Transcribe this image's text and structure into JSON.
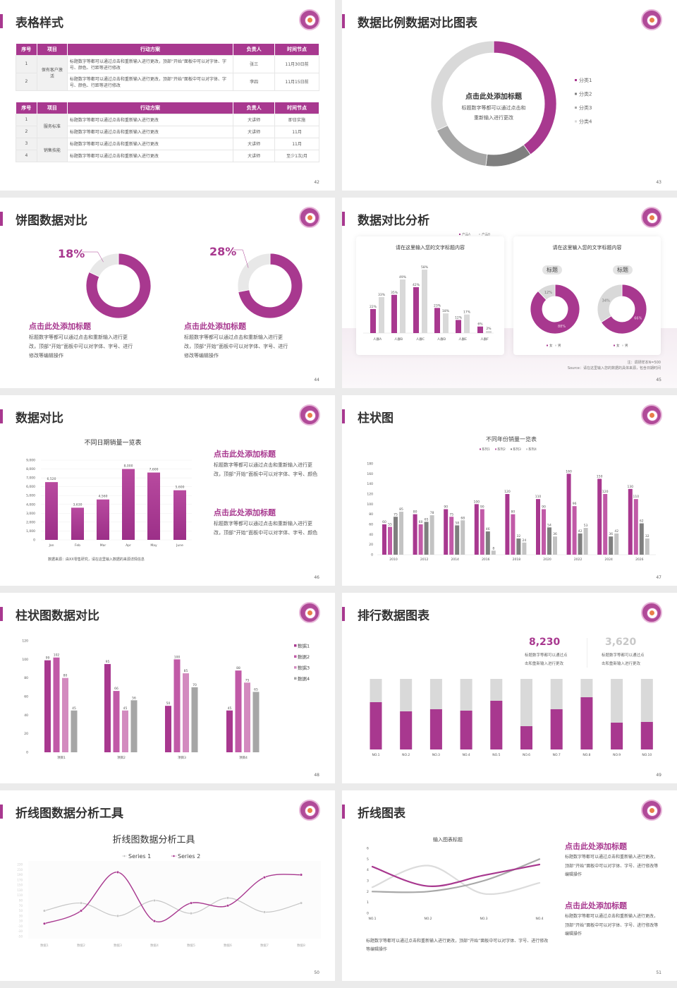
{
  "colors": {
    "accent": "#a8388f",
    "accent2": "#c15aa7",
    "accent3": "#d38bbf",
    "gray_dark": "#7f7f7f",
    "gray": "#a6a6a6",
    "gray_light": "#d9d9d9"
  },
  "s42": {
    "title": "表格样式",
    "page": "42",
    "table1": {
      "headers": [
        "序号",
        "项目",
        "行动方案",
        "负责人",
        "时间节点"
      ],
      "groups": [
        {
          "project": "保有客户激活",
          "rows": [
            {
              "no": "1",
              "plan": "标题数字等都可以通过点击和重新输入进行更改，顶部“开始”面板中可以对字体、字号、颜色、行距等进行修改",
              "owner": "张三",
              "time": "11月30日前"
            },
            {
              "no": "2",
              "plan": "标题数字等都可以通过点击和重新输入进行更改，顶部“开始”面板中可以对字体、字号、颜色、行距等进行修改",
              "owner": "李四",
              "time": "11月15日前"
            }
          ]
        }
      ]
    },
    "table2": {
      "headers": [
        "序号",
        "项目",
        "行动方案",
        "负责人",
        "时间节点"
      ],
      "groups": [
        {
          "project": "服务标准",
          "rows": [
            {
              "no": "1",
              "plan": "标题数字等都可以通过点击和重新输入进行更改",
              "owner": "大讲师",
              "time": "即日实施"
            },
            {
              "no": "2",
              "plan": "标题数字等都可以通过点击和重新输入进行更改",
              "owner": "大讲师",
              "time": "11月"
            }
          ]
        },
        {
          "project": "销售技能",
          "rows": [
            {
              "no": "3",
              "plan": "标题数字等都可以通过点击和重新输入进行更改",
              "owner": "大讲师",
              "time": "11月"
            },
            {
              "no": "4",
              "plan": "标题数字等都可以通过点击和重新输入进行更改",
              "owner": "大讲师",
              "time": "至少1次/月"
            }
          ]
        }
      ]
    }
  },
  "s43": {
    "title": "数据比例数据对比图表",
    "page": "43",
    "center_title": "点击此处添加标题",
    "center_line1": "标题数字等都可以通过点击和",
    "center_line2": "重新输入进行更改"
  },
  "s44": {
    "title": "饼图数据对比",
    "page": "44",
    "items": [
      {
        "percent": "18%",
        "heading": "点击此处添加标题",
        "body": "标题数字等都可以通过点击和重新输入进行更改，顶部“开始”面板中可以对字体、字号、进行修改等编辑操作"
      },
      {
        "percent": "28%",
        "heading": "点击此处添加标题",
        "body": "标题数字等都可以通过点击和重新输入进行更改，顶部“开始”面板中可以对字体、字号、进行修改等编辑操作"
      }
    ]
  },
  "s45": {
    "title": "数据对比分析",
    "page": "45",
    "card1_title": "请在这里输入您的文字标题内容",
    "card2_title": "请在这里输入您的文字标题内容",
    "pill1": "标题",
    "pill2": "标题",
    "note": "注：调研样本N=500",
    "source": "Source：请在这里输入您的数据的具体来源，包含日期时间"
  },
  "s46": {
    "title": "数据对比",
    "page": "46",
    "chart_title": "不同日期销量一览表",
    "source": "数据来源：由XX零售研究，请在这里输入数据的来源详情信息",
    "blocks": [
      {
        "heading": "点击此处添加标题",
        "body": "标题数字等都可以通过点击和重新输入进行更改，顶部“开始”面板中可以对字体、字号、颜色"
      },
      {
        "heading": "点击此处添加标题",
        "body": "标题数字等都可以通过点击和重新输入进行更改，顶部“开始”面板中可以对字体、字号、颜色"
      }
    ]
  },
  "s47": {
    "title": "柱状图",
    "page": "47",
    "chart_title": "不同年份销量一览表"
  },
  "s48": {
    "title": "柱状图数据对比",
    "page": "48"
  },
  "s49": {
    "title": "排行数据图表",
    "page": "49",
    "stat1": {
      "value": "8,230",
      "desc1": "标题数字等都可以通过点",
      "desc2": "击和重新输入进行更改"
    },
    "stat2": {
      "value": "3,620",
      "desc1": "标题数字等都可以通过点",
      "desc2": "击和重新输入进行更改"
    }
  },
  "s50": {
    "title": "折线图数据分析工具",
    "page": "50",
    "chart_title": "折线图数据分析工具"
  },
  "s51": {
    "title": "折线图表",
    "page": "51",
    "chart_title": "输入图表标题",
    "bottom_text": "标题数字等都可以通过点击和重新输入进行更改，顶部“开始”面板中可以对字体、字号、进行修改等编辑操作",
    "blocks": [
      {
        "heading": "点击此处添加标题",
        "body": "标题数字等都可以通过点击和重新输入进行更改，顶部“开始”面板中可以对字体、字号、进行修改等编辑操作"
      },
      {
        "heading": "点击此处添加标题",
        "body": "标题数字等都可以通过点击和重新输入进行更改，顶部“开始”面板中可以对字体、字号、进行修改等编辑操作"
      }
    ]
  },
  "chart_data": [
    {
      "id": "s43",
      "type": "pie",
      "donut": true,
      "categories": [
        "分类1",
        "分类2",
        "分类3",
        "分类4"
      ],
      "values": [
        40,
        12,
        16,
        32
      ],
      "legend": "right"
    },
    {
      "id": "s44a",
      "type": "pie",
      "donut": true,
      "values": [
        82,
        18
      ],
      "labels": [
        "",
        "18%"
      ]
    },
    {
      "id": "s44b",
      "type": "pie",
      "donut": true,
      "values": [
        72,
        28
      ],
      "labels": [
        "",
        "28%"
      ]
    },
    {
      "id": "s45bar",
      "type": "bar",
      "categories": [
        "人群A",
        "人群B",
        "人群C",
        "人群D",
        "人群E",
        "人群F"
      ],
      "series": [
        {
          "name": "产品A",
          "values": [
            22,
            35,
            42,
            23,
            12,
            6
          ]
        },
        {
          "name": "产品B",
          "values": [
            33,
            49,
            58,
            18,
            17,
            2
          ]
        }
      ],
      "unit": "%",
      "legend": "top-right"
    },
    {
      "id": "s45pie1",
      "type": "pie",
      "donut": true,
      "categories": [
        "女",
        "男"
      ],
      "values": [
        88,
        12
      ],
      "legend": "bottom"
    },
    {
      "id": "s45pie2",
      "type": "pie",
      "donut": true,
      "categories": [
        "女",
        "男"
      ],
      "values": [
        66,
        34
      ],
      "legend": "bottom"
    },
    {
      "id": "s46",
      "type": "bar",
      "title": "不同日期销量一览表",
      "categories": [
        "Jan",
        "Feb",
        "Mar",
        "Apr",
        "May",
        "June"
      ],
      "values": [
        6520,
        3630,
        4560,
        8000,
        7600,
        5600
      ],
      "ylim": [
        0,
        9000
      ],
      "yticks": [
        "0",
        "1,000",
        "2,000",
        "3,000",
        "4,000",
        "5,000",
        "6,000",
        "7,000",
        "8,000",
        "9,000"
      ],
      "value_labels": [
        "6,520",
        "3,630",
        "4,560",
        "8,000",
        "7,600",
        "5,600"
      ],
      "grid": true
    },
    {
      "id": "s47",
      "type": "bar",
      "title": "不同年份销量一览表",
      "categories": [
        "2010",
        "2012",
        "2014",
        "2016",
        "2018",
        "2020",
        "2022",
        "2024",
        "2026"
      ],
      "ylim": [
        0,
        180
      ],
      "legend": "top",
      "series": [
        {
          "name": "系列1",
          "values": [
            60,
            80,
            90,
            100,
            120,
            110,
            160,
            150,
            130
          ]
        },
        {
          "name": "系列2",
          "values": [
            55,
            60,
            75,
            90,
            80,
            90,
            96,
            120,
            110
          ]
        },
        {
          "name": "系列3",
          "values": [
            75,
            65,
            58,
            46,
            32,
            54,
            42,
            36,
            62
          ]
        },
        {
          "name": "系列4",
          "values": [
            85,
            78,
            68,
            8,
            24,
            36,
            53,
            42,
            32
          ]
        }
      ]
    },
    {
      "id": "s48",
      "type": "bar",
      "categories": [
        "项目1",
        "项目2",
        "项目3",
        "项目4"
      ],
      "ylim": [
        0,
        120
      ],
      "legend": "right",
      "series": [
        {
          "name": "数据1",
          "values": [
            99,
            95,
            50,
            45
          ]
        },
        {
          "name": "数据2",
          "values": [
            102,
            66,
            100,
            88
          ]
        },
        {
          "name": "数据3",
          "values": [
            80,
            45,
            85,
            75
          ]
        },
        {
          "name": "数据4",
          "values": [
            45,
            56,
            70,
            65
          ]
        }
      ]
    },
    {
      "id": "s49",
      "type": "bar",
      "stacked_percent": true,
      "categories": [
        "NO.1",
        "NO.2",
        "NO.3",
        "NO.4",
        "NO.5",
        "NO.6",
        "NO.7",
        "NO.8",
        "NO.9",
        "NO.10"
      ],
      "values": [
        67,
        54,
        57,
        55,
        69,
        33,
        57,
        74,
        38,
        39
      ],
      "unit": "%"
    },
    {
      "id": "s50",
      "type": "line",
      "title": "折线图数据分析工具",
      "smooth": true,
      "categories": [
        "数据1",
        "数据2",
        "数据3",
        "数据4",
        "数据5",
        "数据6",
        "数据7",
        "数据8"
      ],
      "ylim": [
        -50,
        230
      ],
      "ytick_step": 20,
      "legend": "top",
      "series": [
        {
          "name": "Series 1",
          "values": [
            50,
            80,
            30,
            90,
            40,
            100,
            45,
            80
          ]
        },
        {
          "name": "Series 2",
          "values": [
            0,
            50,
            200,
            10,
            80,
            70,
            180,
            190
          ]
        }
      ]
    },
    {
      "id": "s51",
      "type": "line",
      "title": "输入图表标题",
      "smooth": true,
      "categories": [
        "NO.1",
        "NO.2",
        "NO.3",
        "NO.4"
      ],
      "ylim": [
        0,
        6
      ],
      "series": [
        {
          "values": [
            4.3,
            2.5,
            3.5,
            4.5
          ]
        },
        {
          "values": [
            2.4,
            4.4,
            1.8,
            2.8
          ]
        },
        {
          "values": [
            2,
            2,
            3,
            5
          ]
        }
      ]
    }
  ]
}
